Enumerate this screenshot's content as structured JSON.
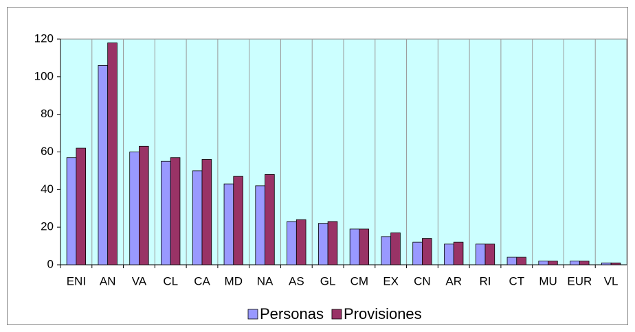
{
  "chart_data": {
    "type": "bar",
    "categories": [
      "ENI",
      "AN",
      "VA",
      "CL",
      "CA",
      "MD",
      "NA",
      "AS",
      "GL",
      "CM",
      "EX",
      "CN",
      "AR",
      "RI",
      "CT",
      "MU",
      "EUR",
      "VL"
    ],
    "series": [
      {
        "name": "Personas",
        "color": "#9999ff",
        "values": [
          57,
          106,
          60,
          55,
          50,
          43,
          42,
          23,
          22,
          19,
          15,
          12,
          11,
          11,
          4,
          2,
          2,
          1
        ]
      },
      {
        "name": "Provisiones",
        "color": "#993366",
        "values": [
          62,
          118,
          63,
          57,
          56,
          47,
          48,
          24,
          23,
          19,
          17,
          14,
          12,
          11,
          4,
          2,
          2,
          1
        ]
      }
    ],
    "ylim": [
      0,
      120
    ],
    "yticks": [
      0,
      20,
      40,
      60,
      80,
      100,
      120
    ],
    "grid": true,
    "legend": "bottom"
  }
}
